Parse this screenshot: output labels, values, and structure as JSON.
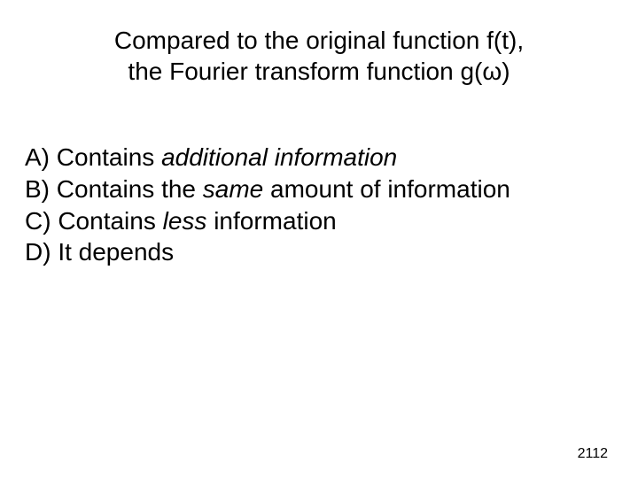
{
  "slide": {
    "background_color": "#ffffff",
    "text_color": "#000000",
    "question": {
      "line1": "Compared to the original function f(t),",
      "line2": "the Fourier transform function g(ω)",
      "fontsize": 28,
      "align": "center"
    },
    "options": {
      "fontsize": 28,
      "items": [
        {
          "label": "A)",
          "pre": "Contains ",
          "em": "additional information",
          "post": ""
        },
        {
          "label": "B)",
          "pre": "Contains the ",
          "em": "same",
          "post": " amount of information"
        },
        {
          "label": "C)",
          "pre": "Contains ",
          "em": "less",
          "post": " information"
        },
        {
          "label": "D)",
          "pre": "It depends",
          "em": "",
          "post": ""
        }
      ]
    },
    "page_number": "2112",
    "page_number_fontsize": 16
  }
}
